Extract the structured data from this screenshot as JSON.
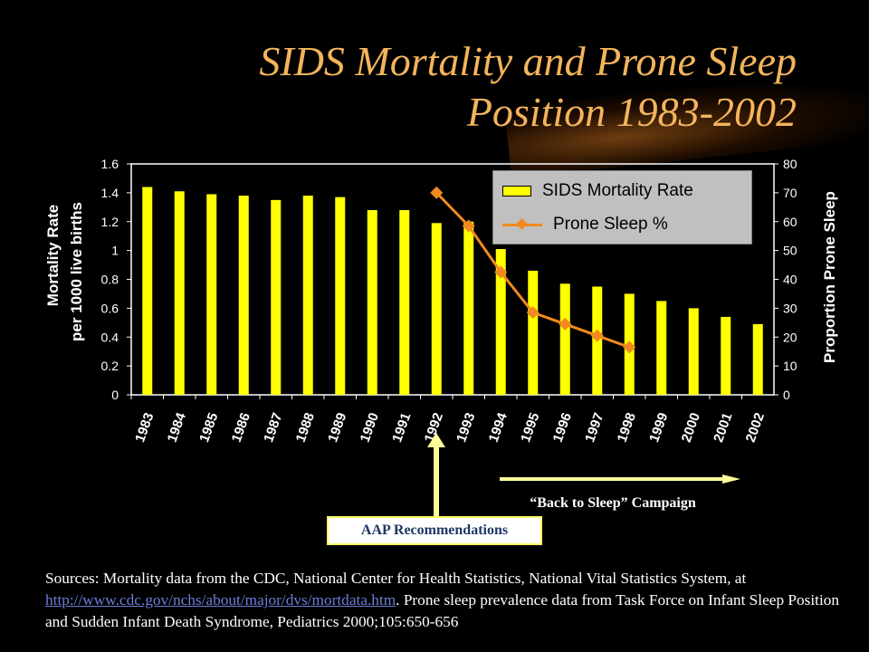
{
  "title": {
    "line1": "SIDS Mortality and Prone Sleep",
    "line2": "Position 1983-2002"
  },
  "axes": {
    "left_label_line1": "Mortality Rate",
    "left_label_line2": "per 1000 live births",
    "right_label": "Proportion Prone Sleep"
  },
  "legend": {
    "bar_label": "SIDS Mortality Rate",
    "line_label": "Prone Sleep %"
  },
  "annotations": {
    "campaign": "“Back to Sleep” Campaign",
    "aap": "AAP Recommendations"
  },
  "sources": {
    "text_before": "Sources: Mortality data from the CDC, National Center for Health Statistics, National Vital Statistics System, at ",
    "link": "http://www.cdc.gov/nchs/about/major/dvs/mortdata.htm",
    "text_after": ".   Prone sleep prevalence data from Task Force on Infant Sleep Position and Sudden Infant Death Syndrome, Pediatrics 2000;105:650-656"
  },
  "colors": {
    "bar": "#ffff00",
    "line": "#f28a1e",
    "title": "#f3b45c",
    "arrow": "#ffff99"
  },
  "chart_data": {
    "type": "bar",
    "categories": [
      "1983",
      "1984",
      "1985",
      "1986",
      "1987",
      "1988",
      "1989",
      "1990",
      "1991",
      "1992",
      "1993",
      "1994",
      "1995",
      "1996",
      "1997",
      "1998",
      "1999",
      "2000",
      "2001",
      "2002"
    ],
    "series": [
      {
        "name": "SIDS Mortality Rate",
        "type": "bar",
        "axis": "left",
        "values": [
          1.44,
          1.41,
          1.39,
          1.38,
          1.35,
          1.38,
          1.37,
          1.28,
          1.28,
          1.19,
          1.2,
          1.01,
          0.86,
          0.77,
          0.75,
          0.7,
          0.65,
          0.6,
          0.54,
          0.49
        ]
      },
      {
        "name": "Prone Sleep %",
        "type": "line",
        "axis": "right",
        "values": [
          null,
          null,
          null,
          null,
          null,
          null,
          null,
          null,
          null,
          70,
          58.5,
          42.5,
          28.5,
          24.5,
          20.5,
          16.5,
          null,
          null,
          null,
          null
        ]
      }
    ],
    "ylim_left": [
      0,
      1.6
    ],
    "yticks_left": [
      "0",
      "0.2",
      "0.4",
      "0.6",
      "0.8",
      "1",
      "1.2",
      "1.4",
      "1.6"
    ],
    "ylim_right": [
      0,
      80
    ],
    "yticks_right": [
      "0",
      "10",
      "20",
      "30",
      "40",
      "50",
      "60",
      "70",
      "80"
    ],
    "grid": false,
    "legend_position": "top-right"
  }
}
